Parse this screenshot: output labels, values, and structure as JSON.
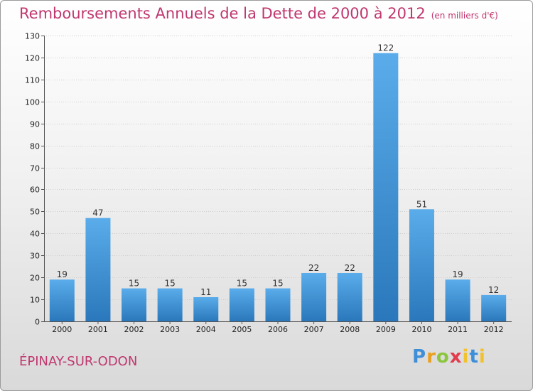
{
  "title": "Remboursements Annuels de la Dette de 2000 à 2012",
  "unit": "(en milliers d'€)",
  "commune": "ÉPINAY-SUR-ODON",
  "logo": "Proxiti",
  "colors": {
    "title": "#c0376f",
    "bar_top": "#5aacea",
    "bar_bottom": "#2a78bb"
  },
  "chart_data": {
    "type": "bar",
    "title": "Remboursements Annuels de la Dette de 2000 à 2012",
    "xlabel": "",
    "ylabel": "",
    "categories": [
      "2000",
      "2001",
      "2002",
      "2003",
      "2004",
      "2005",
      "2006",
      "2007",
      "2008",
      "2009",
      "2010",
      "2011",
      "2012"
    ],
    "values": [
      19,
      47,
      15,
      15,
      11,
      15,
      15,
      22,
      22,
      122,
      51,
      19,
      12
    ],
    "ylim": [
      0,
      130
    ],
    "yticks": [
      0,
      10,
      20,
      30,
      40,
      50,
      60,
      70,
      80,
      90,
      100,
      110,
      120,
      130
    ],
    "grid": true
  }
}
